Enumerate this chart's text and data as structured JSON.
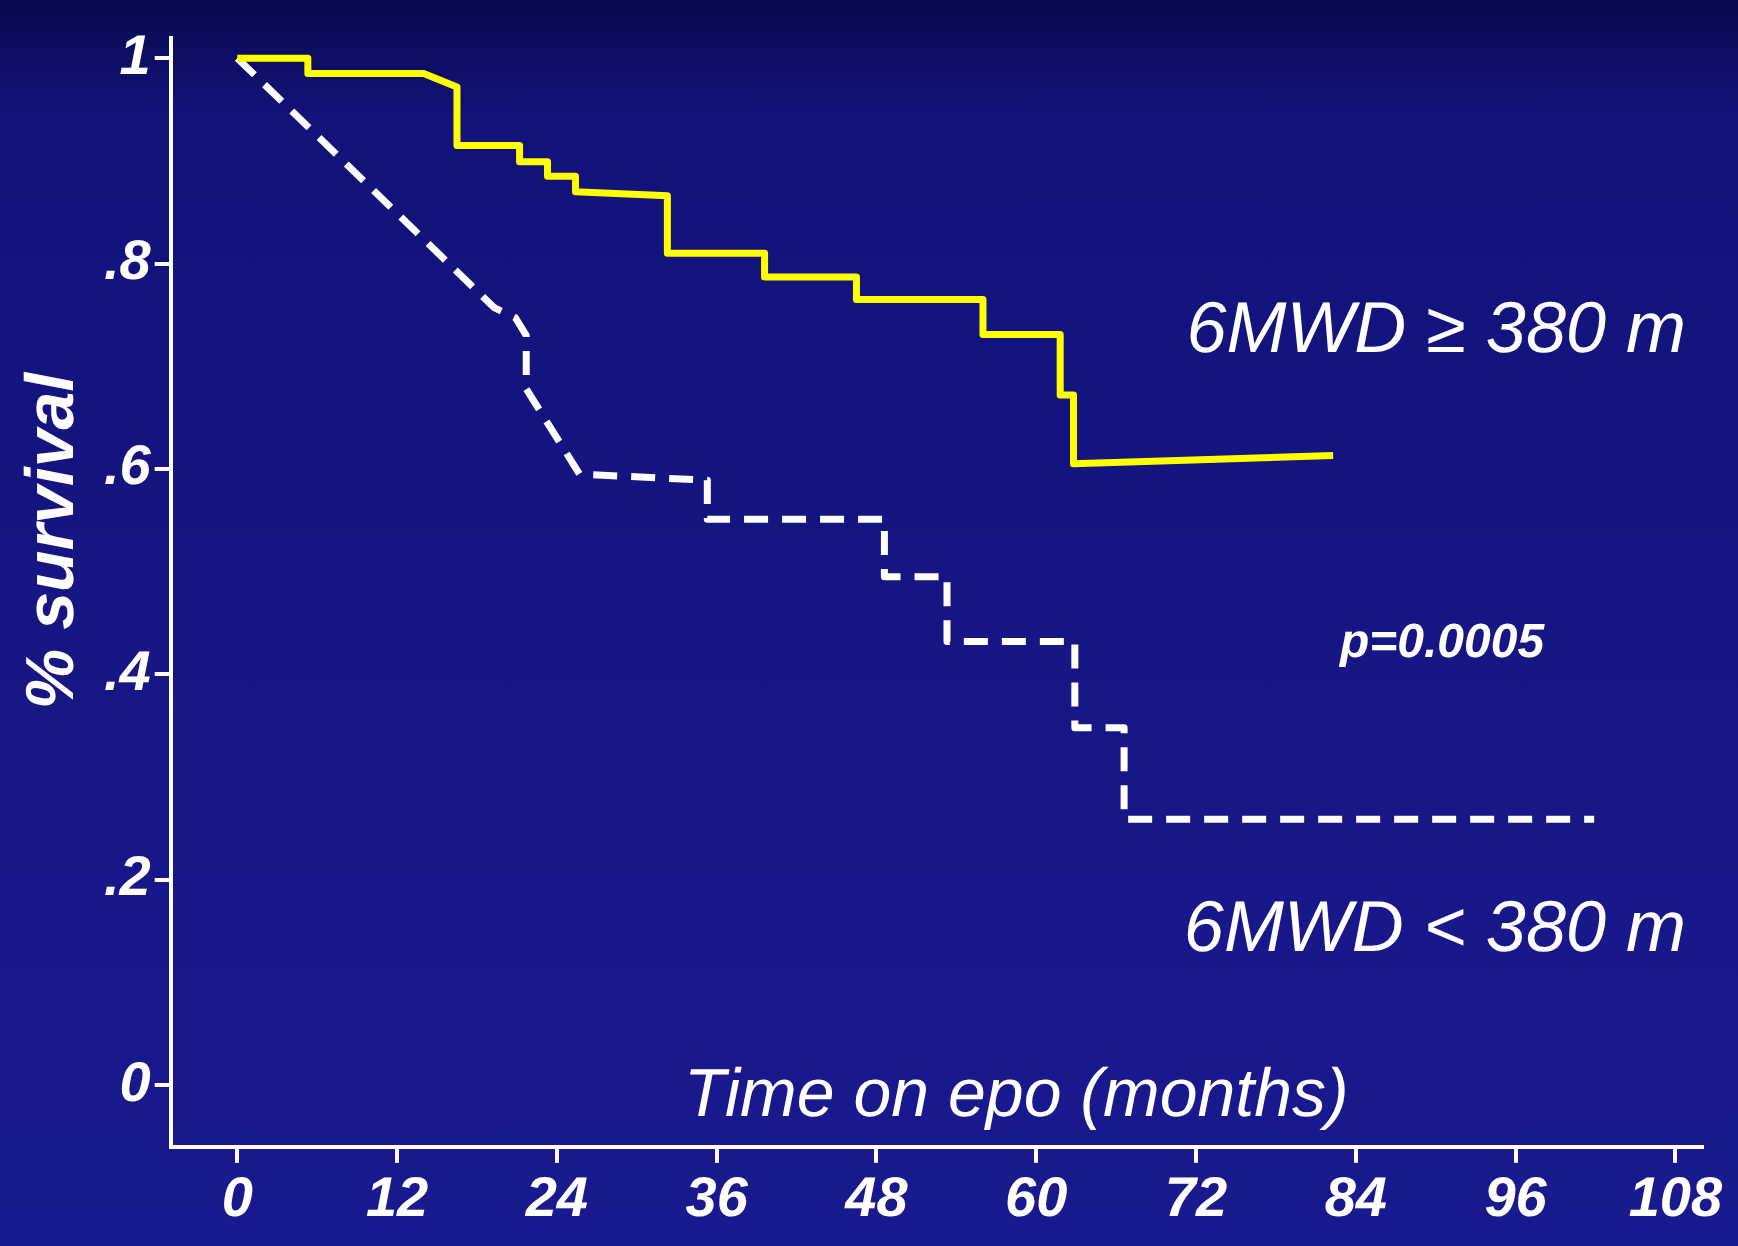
{
  "chart_data": {
    "type": "line",
    "xlabel": "Time on epo (months)",
    "ylabel": "% survival",
    "annotations": [
      "p=0.0005"
    ],
    "series": [
      {
        "name": "6MWD ≥ 380 m",
        "color": "#ffff00",
        "line_style": "solid",
        "x": [
          0,
          5.3,
          5.3,
          14,
          16.5,
          16.5,
          21.2,
          21.2,
          23.3,
          23.3,
          25.4,
          25.4,
          32.3,
          32.3,
          39.6,
          39.6,
          46.5,
          46.5,
          56,
          56,
          61.8,
          61.8,
          62.8,
          62.8,
          82.3
        ],
        "values": [
          1,
          1,
          0.985,
          0.985,
          0.972,
          0.915,
          0.915,
          0.899,
          0.899,
          0.885,
          0.885,
          0.87,
          0.866,
          0.81,
          0.81,
          0.787,
          0.787,
          0.765,
          0.765,
          0.731,
          0.731,
          0.672,
          0.672,
          0.605,
          0.613
        ]
      },
      {
        "name": "6MWD < 380 m",
        "color": "#ffffff",
        "line_style": "dashed",
        "x": [
          0,
          19.3,
          20.9,
          21.7,
          21.7,
          25.7,
          35.3,
          35.3,
          48.6,
          48.6,
          53.3,
          53.3,
          62.9,
          62.9,
          66.6,
          66.6,
          101.9
        ],
        "values": [
          1,
          0.757,
          0.747,
          0.73,
          0.678,
          0.595,
          0.589,
          0.551,
          0.551,
          0.495,
          0.495,
          0.432,
          0.432,
          0.348,
          0.348,
          0.259,
          0.259
        ]
      }
    ],
    "xlim": [
      -5,
      110
    ],
    "xticks": [
      0,
      12,
      24,
      36,
      48,
      60,
      72,
      84,
      96,
      108
    ],
    "ylim": [
      -0.06,
      1.02
    ],
    "yticks": [
      {
        "value": 0,
        "label": "0"
      },
      {
        "value": 0.2,
        "label": ".2"
      },
      {
        "value": 0.4,
        "label": ".4"
      },
      {
        "value": 0.6,
        "label": ".6"
      },
      {
        "value": 0.8,
        "label": ".8"
      },
      {
        "value": 1,
        "label": "1"
      }
    ],
    "grid": false,
    "legend": false,
    "marker": "none"
  }
}
